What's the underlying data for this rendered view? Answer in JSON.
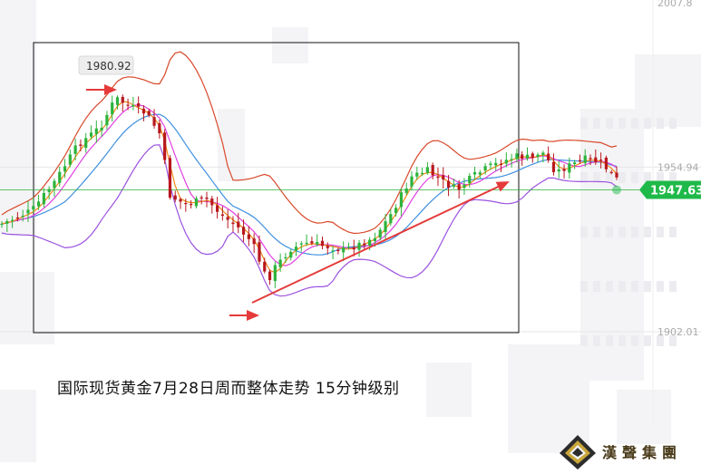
{
  "chart_data": {
    "type": "candlestick",
    "instrument_note": "国际现货黄金7月28日周而整体走势  15分钟级别",
    "price_axis_labels": [
      "2007.8",
      "1954.94",
      "1902.01"
    ],
    "current_price": "1947.63",
    "high_marker_label": "1980.92",
    "ylim": [
      1900,
      2008
    ],
    "series": [
      {
        "name": "",
        "kind": "bollinger-upper",
        "color": "#d9482b"
      },
      {
        "name": "",
        "kind": "bollinger-lower",
        "color": "#9b52e0"
      },
      {
        "name": "",
        "kind": "ma-blue",
        "color": "#3d8fe0"
      },
      {
        "name": "",
        "kind": "ma-magenta",
        "color": "#e040e0"
      },
      {
        "name": "",
        "kind": "ma-orange",
        "color": "#f08a18"
      }
    ],
    "colors": {
      "up": "#2cb33c",
      "down": "#b8181e",
      "arrow": "#e53a3a",
      "price_badge": "#1fb94a",
      "current_line": "#2cb33c"
    }
  },
  "caption": "国际现货黄金7月28日周而整体走势  15分钟级别",
  "brand": {
    "name": "漢聲集團",
    "logo": "diamond-logo-icon"
  }
}
